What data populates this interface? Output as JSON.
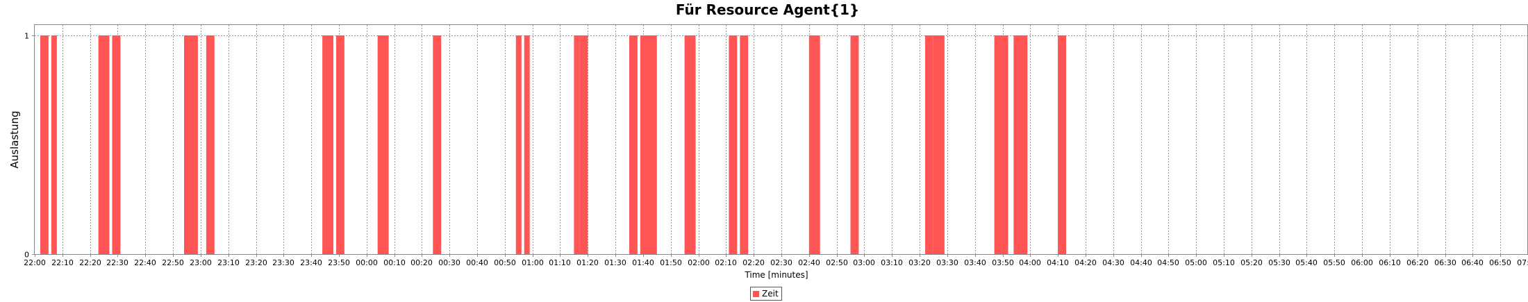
{
  "chart_data": {
    "type": "bar",
    "title": "Für Resource Agent{1}",
    "xlabel": "Time [minutes]",
    "ylabel": "Auslastung",
    "ylim": [
      0,
      1
    ],
    "yticks": [
      "0",
      "1"
    ],
    "xlim": [
      "22:00",
      "07:00"
    ],
    "xticks": [
      "22:00",
      "22:10",
      "22:20",
      "22:30",
      "22:40",
      "22:50",
      "23:00",
      "23:10",
      "23:20",
      "23:30",
      "23:40",
      "23:50",
      "00:00",
      "00:10",
      "00:20",
      "00:30",
      "00:40",
      "00:50",
      "01:00",
      "01:10",
      "01:20",
      "01:30",
      "01:40",
      "01:50",
      "02:00",
      "02:10",
      "02:20",
      "02:30",
      "02:40",
      "02:50",
      "03:00",
      "03:10",
      "03:20",
      "03:30",
      "03:40",
      "03:50",
      "04:00",
      "04:10",
      "04:20",
      "04:30",
      "04:40",
      "04:50",
      "05:00",
      "05:10",
      "05:20",
      "05:30",
      "05:40",
      "05:50",
      "06:00",
      "06:10",
      "06:20",
      "06:30",
      "06:40",
      "06:50",
      "07:00"
    ],
    "grid": true,
    "legend_position": "bottom",
    "series": [
      {
        "name": "Zeit",
        "color": "#ff5555",
        "value": 1,
        "intervals": [
          [
            "22:02",
            "22:05"
          ],
          [
            "22:06",
            "22:08"
          ],
          [
            "22:23",
            "22:27"
          ],
          [
            "22:28",
            "22:31"
          ],
          [
            "22:54",
            "22:59"
          ],
          [
            "23:02",
            "23:05"
          ],
          [
            "23:44",
            "23:48"
          ],
          [
            "23:49",
            "23:52"
          ],
          [
            "00:04",
            "00:08"
          ],
          [
            "00:24",
            "00:27"
          ],
          [
            "00:54",
            "00:56"
          ],
          [
            "00:57",
            "00:59"
          ],
          [
            "01:15",
            "01:17"
          ],
          [
            "01:17",
            "01:20"
          ],
          [
            "01:35",
            "01:38"
          ],
          [
            "01:39",
            "01:45"
          ],
          [
            "01:55",
            "01:59"
          ],
          [
            "02:11",
            "02:14"
          ],
          [
            "02:15",
            "02:18"
          ],
          [
            "02:40",
            "02:44"
          ],
          [
            "02:55",
            "02:58"
          ],
          [
            "03:22",
            "03:25"
          ],
          [
            "03:25",
            "03:29"
          ],
          [
            "03:47",
            "03:52"
          ],
          [
            "03:54",
            "03:59"
          ],
          [
            "04:10",
            "04:13"
          ]
        ]
      }
    ]
  }
}
